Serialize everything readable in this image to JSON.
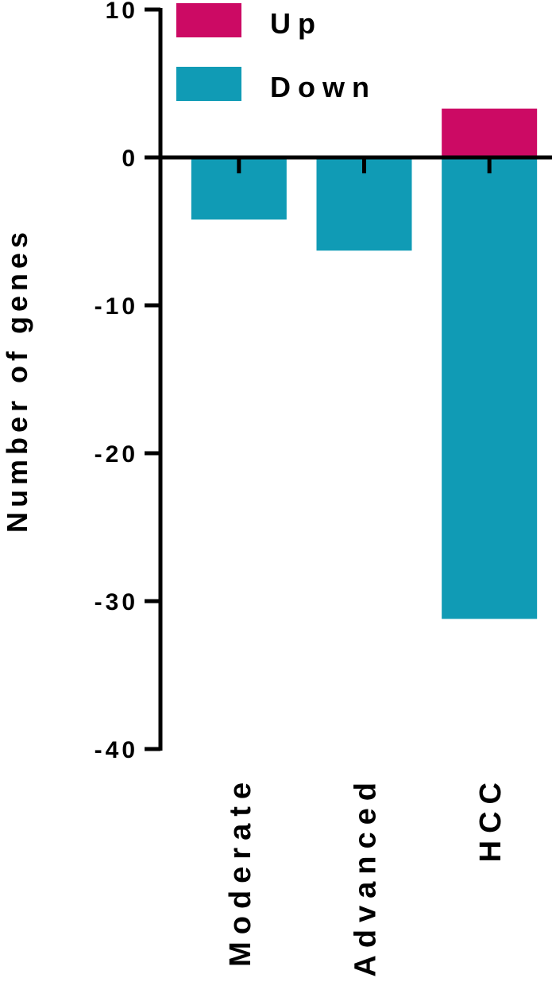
{
  "chart_data": {
    "type": "bar",
    "stacked": "diverging",
    "categories": [
      "Moderate",
      "Advanced",
      "HCC"
    ],
    "series": [
      {
        "name": "Up",
        "color": "#cc0a64",
        "values": [
          0,
          0,
          3.3
        ]
      },
      {
        "name": "Down",
        "color": "#109bb5",
        "values": [
          -4.2,
          -6.3,
          -31.2
        ]
      }
    ],
    "ylabel": "Number of genes",
    "xlabel": "",
    "ylim": [
      -40,
      10
    ],
    "yticks": [
      10,
      0,
      -10,
      -20,
      -30,
      -40
    ],
    "ytick_labels": [
      "10",
      "0",
      "-10",
      "-20",
      "-30",
      "-40"
    ],
    "grid": false,
    "legend_position": "top"
  }
}
